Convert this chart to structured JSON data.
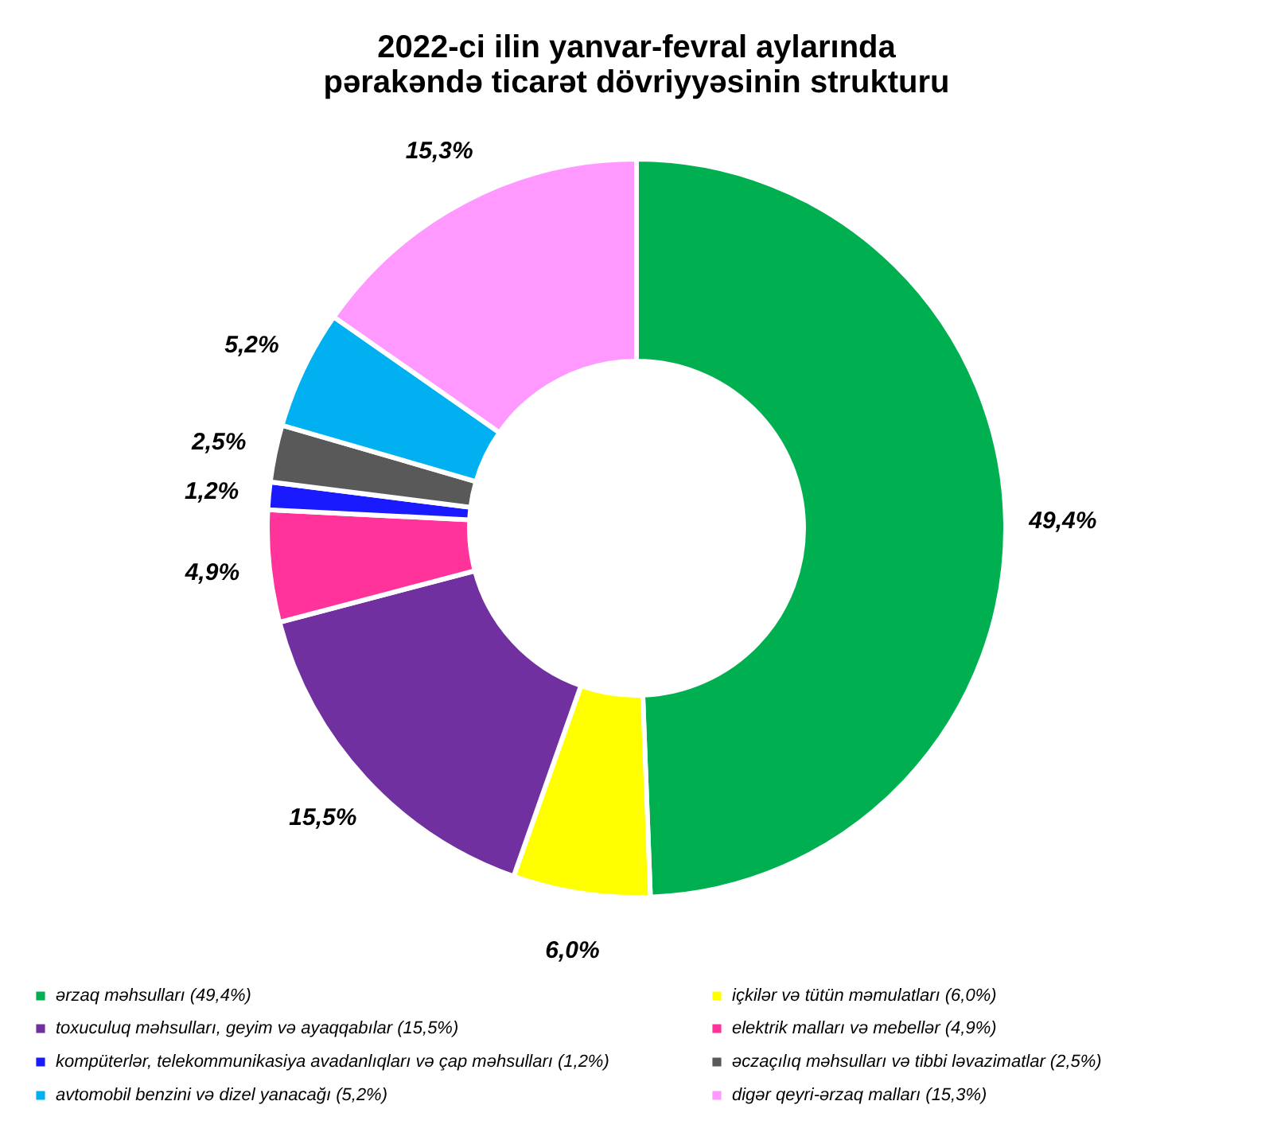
{
  "chart_data": {
    "type": "donut",
    "title": "2022-ci ilin yanvar-fevral aylarında\npərakəndə ticarət dövriyyəsinin strukturu",
    "categories": [
      "ərzaq məhsulları (49,4%)",
      "içkilər və tütün məmulatları (6,0%)",
      "toxuculuq məhsulları, geyim və ayaqqabılar (15,5%)",
      "elektrik malları və mebellər (4,9%)",
      "kompüterlər, telekommunikasiya avadanlıqları və çap məhsulları (1,2%)",
      "əczaçılıq məhsulları və tibbi ləvazimatlar (2,5%)",
      "avtomobil benzini və dizel yanacağı (5,2%)",
      "digər qeyri-ərzaq malları (15,3%)"
    ],
    "values": [
      49.4,
      6.0,
      15.5,
      4.9,
      1.2,
      2.5,
      5.2,
      15.3
    ],
    "value_labels": [
      "49,4%",
      "6,0%",
      "15,5%",
      "4,9%",
      "1,2%",
      "2,5%",
      "5,2%",
      "15,3%"
    ],
    "colors": [
      "#00b050",
      "#ffff00",
      "#7030a0",
      "#ff3399",
      "#1a1aff",
      "#595959",
      "#00b0f0",
      "#ff99ff"
    ],
    "legend": "bottom"
  }
}
